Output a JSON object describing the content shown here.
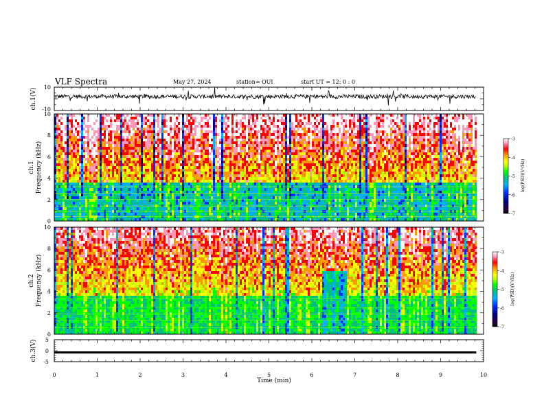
{
  "header": {
    "title": "VLF Spectra",
    "date": "May 27, 2024",
    "station": "station= OUI",
    "start": "start  UT =   12: 0  : 0"
  },
  "chart_data": [
    {
      "type": "line",
      "panel": "ch1-waveform",
      "ylabel": "ch.1(V)",
      "ylim": [
        -10,
        10
      ],
      "yticks": [
        "10",
        "-10"
      ],
      "xlim": [
        0,
        10
      ],
      "data_extent_min": 9.83,
      "baseline": 2.0,
      "noise_amplitude": 3.5
    },
    {
      "type": "heatmap",
      "panel": "ch1-spectrogram",
      "ylabel": "ch.1\nFrequency  (kHz)",
      "ylim": [
        0,
        10
      ],
      "yticks": [
        "0",
        "2",
        "4",
        "6",
        "8",
        "10"
      ],
      "xlim": [
        0,
        10
      ],
      "colorbar": {
        "label": "log(PSD)(V²/Hz)",
        "range": [
          -7,
          -3
        ],
        "ticks": [
          "-3",
          "-4",
          "-5",
          "-6",
          "-7"
        ]
      }
    },
    {
      "type": "heatmap",
      "panel": "ch2-spectrogram",
      "ylabel": "ch.2\nFrequency  (kHz)",
      "ylim": [
        0,
        10
      ],
      "yticks": [
        "0",
        "2",
        "4",
        "6",
        "8",
        "10"
      ],
      "xlim": [
        0,
        10
      ],
      "colorbar": {
        "label": "log(PSD)(V²/Hz)",
        "range": [
          -7,
          -3
        ],
        "ticks": [
          "-3",
          "-4",
          "-5",
          "-6",
          "-7"
        ]
      }
    },
    {
      "type": "line",
      "panel": "ch3-waveform",
      "ylabel": "ch.3(V)",
      "ylim": [
        -5,
        5
      ],
      "yticks": [
        "5",
        "0",
        "-5"
      ],
      "xlim": [
        0,
        10
      ],
      "value": -0.8,
      "xlabel": "Time  (min)",
      "xticks": [
        "0",
        "1",
        "2",
        "3",
        "4",
        "5",
        "6",
        "7",
        "8",
        "9",
        "10"
      ]
    }
  ],
  "colors": {
    "ramp": [
      "#2a0040",
      "#000080",
      "#0030ff",
      "#00b0ff",
      "#00c080",
      "#00ff00",
      "#c0ff00",
      "#ffff00",
      "#ff9900",
      "#ff0000",
      "#ff99bb",
      "#ffffff"
    ]
  }
}
